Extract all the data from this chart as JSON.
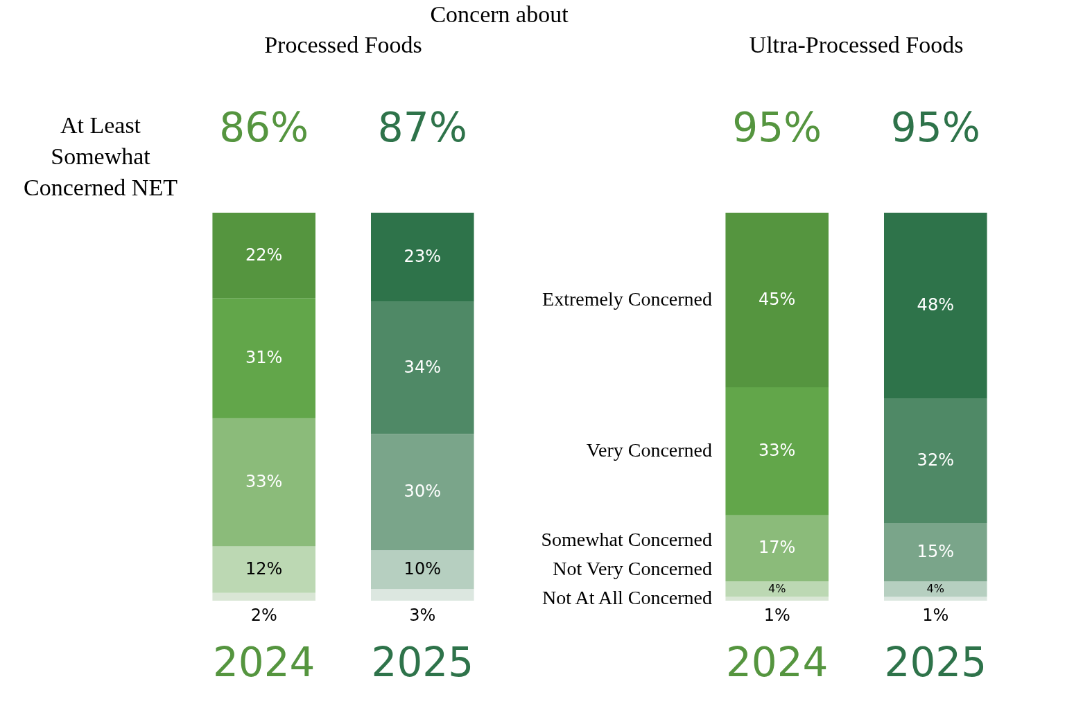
{
  "chart_data": [
    {
      "type": "bar",
      "stacked": true,
      "title": "Processed Foods",
      "annotations": [
        "Concern about",
        "At Least\nSomewhat\nConcerned NET",
        "86%",
        "87%"
      ],
      "categories": [
        "2024",
        "2025"
      ],
      "series": [
        {
          "colors": [
            "#d9e6d5",
            "#dce7e0"
          ],
          "values": [
            2,
            3
          ],
          "value_labels": [
            "2%",
            "3%"
          ]
        },
        {
          "colors": [
            "#bcd8b3",
            "#b6cfc0"
          ],
          "values": [
            12,
            10
          ],
          "value_labels": [
            "12%",
            "10%"
          ]
        },
        {
          "colors": [
            "#8bbb7a",
            "#7aa58a"
          ],
          "values": [
            33,
            30
          ],
          "value_labels": [
            "33%",
            "30%"
          ]
        },
        {
          "colors": [
            "#62a64a",
            "#4f8966"
          ],
          "values": [
            31,
            34
          ],
          "value_labels": [
            "31%",
            "34%"
          ]
        },
        {
          "colors": [
            "#55953f",
            "#2e734a"
          ],
          "values": [
            22,
            23
          ],
          "value_labels": [
            "22%",
            "23%"
          ]
        }
      ]
    },
    {
      "type": "bar",
      "stacked": true,
      "title": "Ultra-Processed Foods",
      "categories": [
        "2024",
        "2025"
      ],
      "annotations": [
        "95%",
        "95%"
      ],
      "series": [
        {
          "name": "Not At All Concerned",
          "colors": [
            "#d9e6d5",
            "#dce7e0"
          ],
          "values": [
            1,
            1
          ],
          "value_labels": [
            "1%",
            "1%"
          ]
        },
        {
          "name": "Not Very Concerned",
          "colors": [
            "#bcd8b3",
            "#b6cfc0"
          ],
          "values": [
            4,
            4
          ],
          "value_labels": [
            "4%",
            "4%"
          ]
        },
        {
          "name": "Somewhat Concerned",
          "colors": [
            "#8bbb7a",
            "#7aa58a"
          ],
          "values": [
            17,
            15
          ],
          "value_labels": [
            "17%",
            "15%"
          ]
        },
        {
          "name": "Very Concerned",
          "colors": [
            "#62a64a",
            "#4f8966"
          ],
          "values": [
            33,
            32
          ],
          "value_labels": [
            "33%",
            "32%"
          ]
        },
        {
          "name": "Extremely Concerned",
          "colors": [
            "#55953f",
            "#2e734a"
          ],
          "values": [
            45,
            48
          ],
          "value_labels": [
            "45%",
            "48%"
          ]
        }
      ]
    }
  ]
}
